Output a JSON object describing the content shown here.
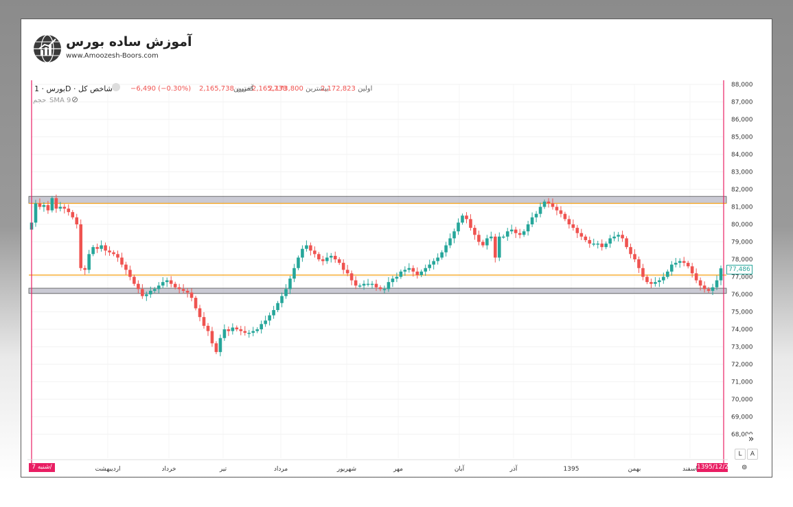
{
  "logo": {
    "name": "آموزش ساده بورس",
    "url": "www.Amoozesh-Boors.com"
  },
  "legend": {
    "symbol": "بورس · 1D · شاخص کل",
    "open_label": "اولین",
    "open_value": "2,172,823",
    "high_label": "بیشترین",
    "high_value": "2,173,800",
    "low_label": "کمترین",
    "low_value": "2,165,738",
    "close_label": "آخرین",
    "close_value": "2,165,738",
    "change": "−6,490 (−0.30%)",
    "volume_label": "حجم",
    "sma_label": "SMA 9"
  },
  "price_label": "77,486",
  "current_date_label": "1395/12/2",
  "crosshair_day_label": "شنبه  7/",
  "controls": {
    "log": "L",
    "auto": "A",
    "scroll": "»"
  },
  "colors": {
    "up": "#26a69a",
    "down": "#ef5350",
    "level_line": "#f5a623",
    "zone": "#9e9eb0",
    "crosshair": "#e91e63"
  },
  "chart_data": {
    "type": "candlestick",
    "y_ticks": [
      "88,000",
      "87,000",
      "86,000",
      "85,000",
      "84,000",
      "83,000",
      "82,000",
      "81,000",
      "80,000",
      "79,000",
      "78,000",
      "77,000",
      "76,000",
      "75,000",
      "74,000",
      "73,000",
      "72,000",
      "71,000",
      "70,000",
      "69,000",
      "68,000"
    ],
    "ylim": [
      67500,
      88000
    ],
    "x_labels": [
      "اردیبهشت",
      "خرداد",
      "تیر",
      "مرداد",
      "شهریور",
      "مهر",
      "آبان",
      "آذر",
      "1395",
      "بهمن",
      "اسفند"
    ],
    "levels": [
      {
        "kind": "zone",
        "range": [
          81200,
          81600
        ]
      },
      {
        "kind": "line",
        "value": 81200
      },
      {
        "kind": "line",
        "value": 77100
      },
      {
        "kind": "zone",
        "range": [
          76050,
          76350
        ]
      }
    ],
    "close_series": [
      80100,
      81200,
      81000,
      81100,
      80800,
      81500,
      80900,
      81000,
      80900,
      80700,
      80400,
      80000,
      77500,
      77400,
      78300,
      78700,
      78600,
      78800,
      78500,
      78400,
      78300,
      78100,
      77700,
      77400,
      77000,
      76600,
      76300,
      75900,
      76000,
      76200,
      76300,
      76500,
      76700,
      76800,
      76600,
      76400,
      76300,
      76200,
      76100,
      75800,
      75200,
      74700,
      74200,
      73900,
      73200,
      72700,
      73500,
      74000,
      73900,
      74100,
      74000,
      73900,
      73800,
      73800,
      73900,
      74000,
      74300,
      74500,
      74800,
      75100,
      75500,
      75900,
      76300,
      76900,
      77500,
      78100,
      78600,
      78800,
      78500,
      78300,
      78000,
      77900,
      78100,
      78200,
      78000,
      77800,
      77400,
      77200,
      76800,
      76500,
      76500,
      76600,
      76600,
      76600,
      76400,
      76300,
      76300,
      76700,
      76900,
      77000,
      77300,
      77400,
      77500,
      77300,
      77100,
      77300,
      77500,
      77700,
      77900,
      78100,
      78400,
      78800,
      79200,
      79600,
      80100,
      80500,
      80300,
      79800,
      79400,
      79000,
      78800,
      79200,
      79300,
      78100,
      79300,
      79300,
      79600,
      79700,
      79500,
      79400,
      79600,
      80000,
      80400,
      80600,
      81000,
      81300,
      81200,
      81000,
      80800,
      80600,
      80300,
      80000,
      79800,
      79500,
      79300,
      79100,
      78900,
      78900,
      78900,
      78700,
      78900,
      79200,
      79300,
      79400,
      79200,
      78700,
      78300,
      78000,
      77500,
      77000,
      76700,
      76600,
      76700,
      76800,
      77000,
      77300,
      77700,
      77800,
      77900,
      77800,
      77600,
      77200,
      76800,
      76500,
      76300,
      76200,
      76400,
      76800,
      77486
    ]
  }
}
